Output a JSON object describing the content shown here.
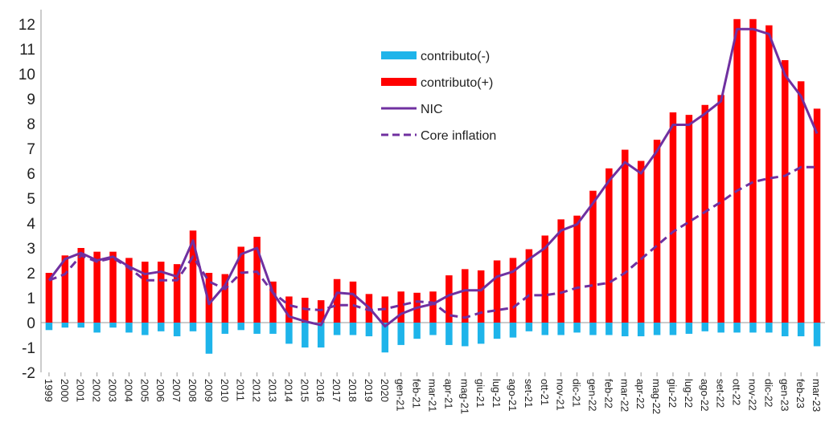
{
  "chart_data": {
    "type": "bar",
    "categories": [
      "1999",
      "2000",
      "2001",
      "2002",
      "2003",
      "2004",
      "2005",
      "2006",
      "2007",
      "2008",
      "2009",
      "2010",
      "2011",
      "2012",
      "2013",
      "2014",
      "2015",
      "2016",
      "2017",
      "2018",
      "2019",
      "2020",
      "gen-21",
      "feb-21",
      "mar-21",
      "apr-21",
      "mag-21",
      "giu-21",
      "lug-21",
      "ago-21",
      "set-21",
      "ott-21",
      "nov-21",
      "dic-21",
      "gen-22",
      "feb-22",
      "mar-22",
      "apr-22",
      "mag-22",
      "giu-22",
      "lug-22",
      "ago-22",
      "set-22",
      "ott-22",
      "nov-22",
      "dic-22",
      "gen-23",
      "feb-23",
      "mar-23"
    ],
    "ylim": [
      -2,
      12
    ],
    "yticks": [
      "-2",
      "-1",
      "0",
      "1",
      "2",
      "3",
      "4",
      "5",
      "6",
      "7",
      "8",
      "9",
      "10",
      "11",
      "12"
    ],
    "legend_position": "upper-center",
    "series": [
      {
        "name": "contributo(-)",
        "kind": "bar",
        "color": "#1eb4ea",
        "values": [
          -0.3,
          -0.2,
          -0.2,
          -0.4,
          -0.2,
          -0.4,
          -0.5,
          -0.35,
          -0.55,
          -0.35,
          -1.25,
          -0.45,
          -0.3,
          -0.45,
          -0.45,
          -0.85,
          -1.0,
          -1.0,
          -0.5,
          -0.5,
          -0.55,
          -1.2,
          -0.9,
          -0.65,
          -0.5,
          -0.9,
          -0.95,
          -0.85,
          -0.65,
          -0.6,
          -0.35,
          -0.5,
          -0.5,
          -0.4,
          -0.5,
          -0.5,
          -0.55,
          -0.55,
          -0.5,
          -0.5,
          -0.45,
          -0.35,
          -0.4,
          -0.4,
          -0.4,
          -0.4,
          -0.55,
          -0.55,
          -0.95
        ]
      },
      {
        "name": "contributo(+)",
        "kind": "bar",
        "color": "#ff0000",
        "values": [
          2.0,
          2.7,
          3.0,
          2.85,
          2.85,
          2.6,
          2.45,
          2.45,
          2.35,
          3.7,
          2.0,
          1.95,
          3.05,
          3.45,
          1.65,
          1.05,
          1.0,
          0.9,
          1.75,
          1.65,
          1.15,
          1.05,
          1.25,
          1.2,
          1.25,
          1.9,
          2.15,
          2.1,
          2.5,
          2.6,
          2.95,
          3.5,
          4.15,
          4.3,
          5.3,
          6.2,
          6.95,
          6.5,
          7.35,
          8.45,
          8.35,
          8.75,
          9.15,
          12.2,
          12.2,
          11.95,
          10.55,
          9.7,
          8.6
        ]
      },
      {
        "name": "NIC",
        "kind": "line",
        "color": "#7030a0",
        "values": [
          1.7,
          2.55,
          2.8,
          2.5,
          2.65,
          2.25,
          1.95,
          2.05,
          1.85,
          3.3,
          0.75,
          1.5,
          2.75,
          3.0,
          1.2,
          0.25,
          0.05,
          -0.1,
          1.2,
          1.15,
          0.6,
          -0.15,
          0.35,
          0.6,
          0.75,
          1.1,
          1.3,
          1.3,
          1.85,
          2.05,
          2.55,
          3.0,
          3.7,
          3.95,
          4.8,
          5.7,
          6.45,
          6.0,
          6.9,
          7.95,
          7.95,
          8.4,
          8.9,
          11.8,
          11.8,
          11.6,
          9.95,
          9.1,
          7.6
        ]
      },
      {
        "name": "Core inflation",
        "kind": "line",
        "dashed": true,
        "color": "#7030a0",
        "values": [
          1.7,
          1.95,
          2.7,
          2.45,
          2.6,
          2.2,
          1.7,
          1.7,
          1.7,
          2.65,
          1.65,
          1.35,
          2.0,
          2.05,
          1.2,
          0.7,
          0.55,
          0.5,
          0.7,
          0.7,
          0.5,
          0.55,
          0.7,
          0.85,
          0.8,
          0.3,
          0.2,
          0.4,
          0.5,
          0.6,
          1.1,
          1.1,
          1.2,
          1.4,
          1.5,
          1.6,
          2.0,
          2.55,
          3.1,
          3.65,
          4.05,
          4.45,
          4.85,
          5.3,
          5.65,
          5.8,
          5.9,
          6.25,
          6.25
        ]
      }
    ]
  }
}
